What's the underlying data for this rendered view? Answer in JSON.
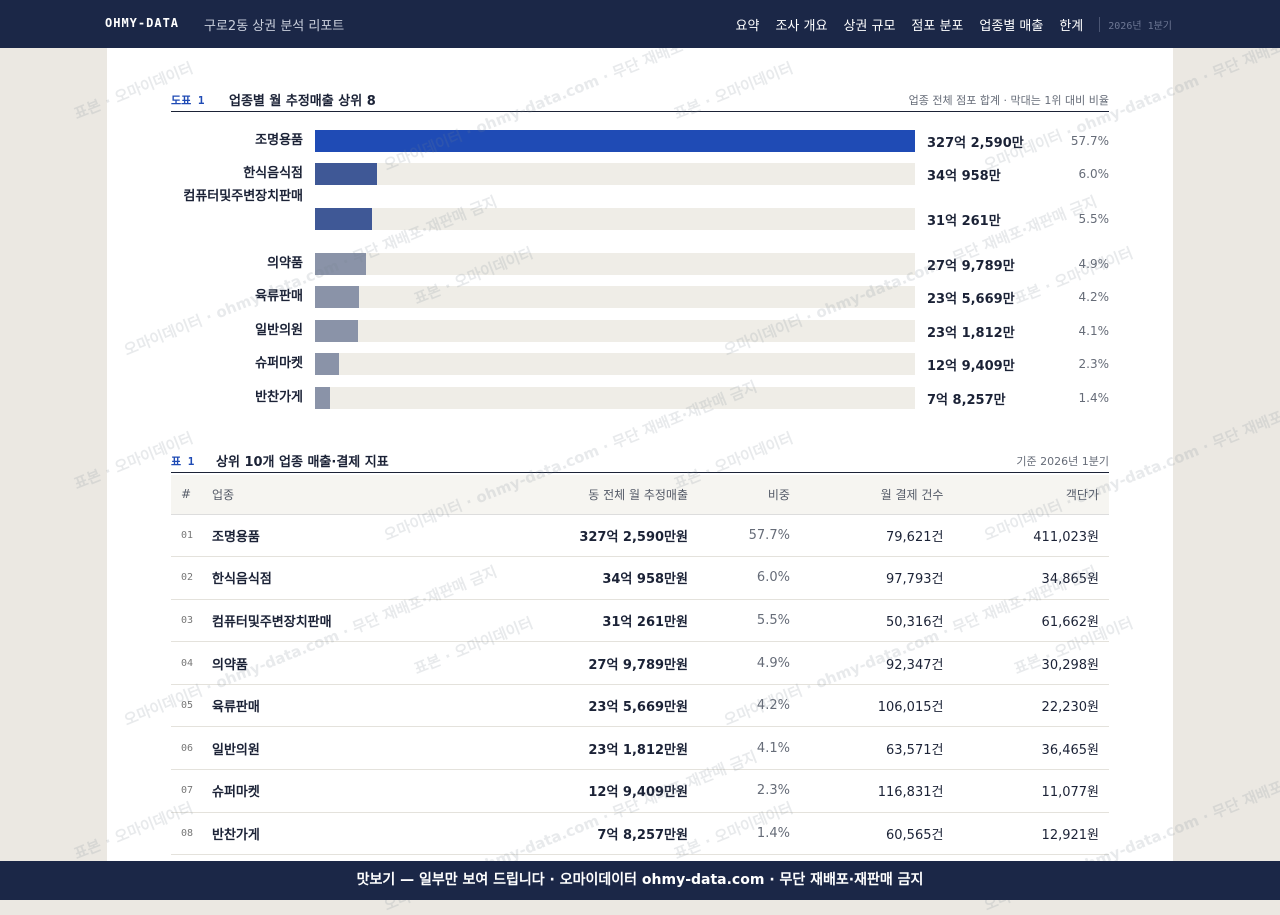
{
  "header": {
    "logo": "OHMY-DATA",
    "title": "구로2동 상권 분석 리포트",
    "nav": [
      "요약",
      "조사 개요",
      "상권 규모",
      "점포 분포",
      "업종별 매출",
      "한계"
    ],
    "period": "2026년 1분기"
  },
  "chart_data": {
    "type": "bar",
    "label": "도표 1",
    "title": "업종별 월 추정매출 상위 8",
    "note": "업종 전체 점포 합계 · 막대는 1위 대비 비율",
    "categories": [
      "조명용품",
      "한식음식점",
      "컴퓨터및주변장치판매",
      "의약품",
      "육류판매",
      "일반의원",
      "슈퍼마켓",
      "반찬가게"
    ],
    "values": [
      57.7,
      6.0,
      5.5,
      4.9,
      4.2,
      4.1,
      2.3,
      1.4
    ],
    "value_labels": [
      "57.7%",
      "6.0%",
      "5.5%",
      "4.9%",
      "4.2%",
      "4.1%",
      "2.3%",
      "1.4%"
    ],
    "amounts": [
      "327억 2,590만",
      "34억 958만",
      "31억 261만",
      "27억 9,789만",
      "23억 5,669만",
      "23억 1,812만",
      "12억 9,409만",
      "7억 8,257만"
    ],
    "colors": [
      "#1f4bb5",
      "#3f5896",
      "#3f5896",
      "#8a93a8",
      "#8a93a8",
      "#8a93a8",
      "#8a93a8",
      "#8a93a8"
    ]
  },
  "table": {
    "label": "표 1",
    "title": "상위 10개 업종 매출·결제 지표",
    "note": "기준 2026년 1분기",
    "columns": [
      "#",
      "업종",
      "동 전체 월 추정매출",
      "비중",
      "월 결제 건수",
      "객단가"
    ],
    "rows": [
      [
        "01",
        "조명용품",
        "327억 2,590만원",
        "57.7%",
        "79,621건",
        "411,023원"
      ],
      [
        "02",
        "한식음식점",
        "34억 958만원",
        "6.0%",
        "97,793건",
        "34,865원"
      ],
      [
        "03",
        "컴퓨터및주변장치판매",
        "31억 261만원",
        "5.5%",
        "50,316건",
        "61,662원"
      ],
      [
        "04",
        "의약품",
        "27억 9,789만원",
        "4.9%",
        "92,347건",
        "30,298원"
      ],
      [
        "05",
        "육류판매",
        "23억 5,669만원",
        "4.2%",
        "106,015건",
        "22,230원"
      ],
      [
        "06",
        "일반의원",
        "23억 1,812만원",
        "4.1%",
        "63,571건",
        "36,465원"
      ],
      [
        "07",
        "슈퍼마켓",
        "12억 9,409만원",
        "2.3%",
        "116,831건",
        "11,077원"
      ],
      [
        "08",
        "반찬가게",
        "7억 8,257만원",
        "1.4%",
        "60,565건",
        "12,921원"
      ]
    ]
  },
  "footer": "맛보기 — 일부만 보여 드립니다 · 오마이데이터 ohmy-data.com · 무단 재배포·재판매 금지",
  "watermark": [
    "표본 · 오마이데이터",
    "오마이데이터 · ohmy-data.com · 무단 재배포·재판매 금지"
  ]
}
